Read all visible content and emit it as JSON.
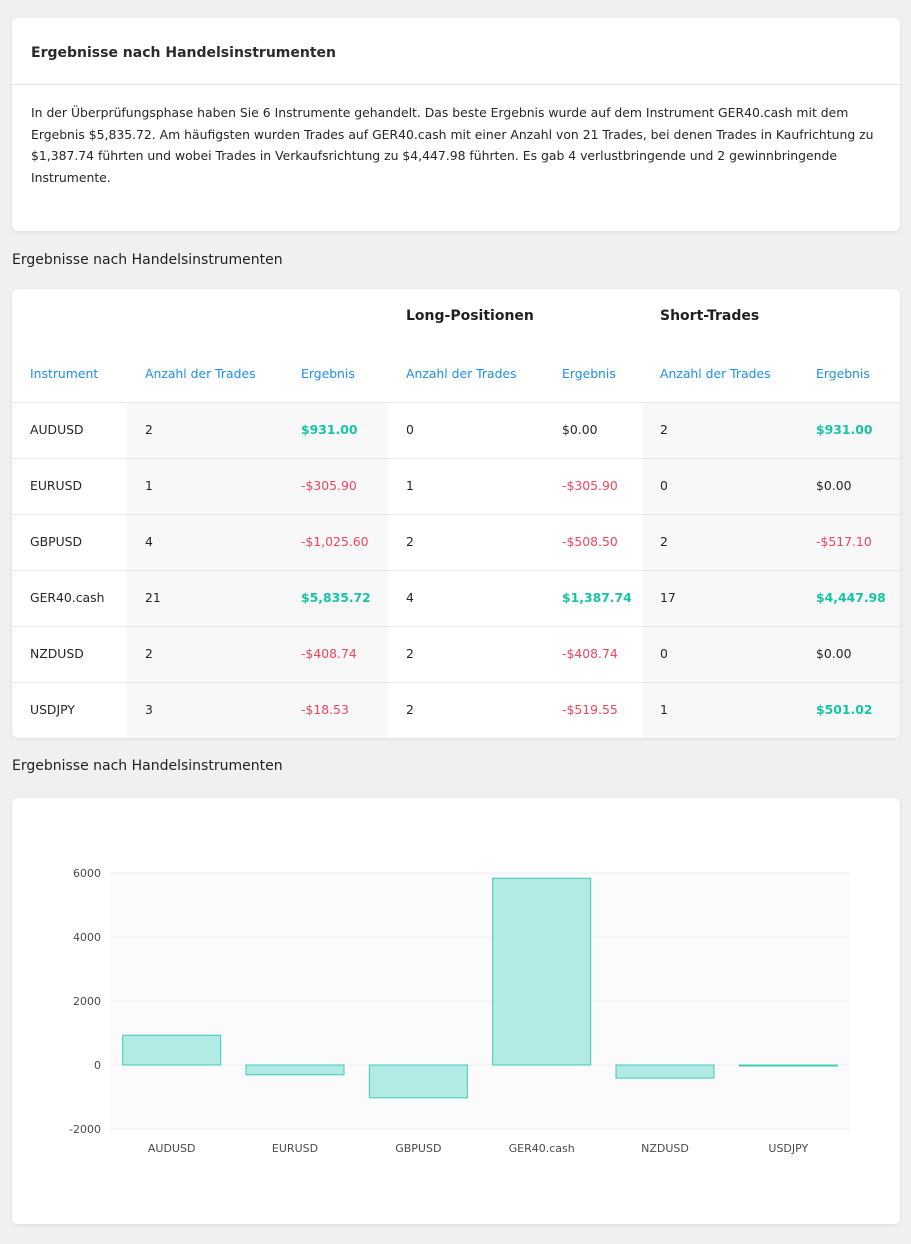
{
  "summary": {
    "title": "Ergebnisse nach Handelsinstrumenten",
    "text": "In der Überprüfungsphase haben Sie 6 Instrumente gehandelt. Das beste Ergebnis wurde auf dem Instrument GER40.cash mit dem Ergebnis $5,835.72. Am häufigsten wurden Trades auf GER40.cash mit einer Anzahl von 21 Trades, bei denen Trades in Kaufrichtung zu $1,387.74 führten und wobei Trades in Verkaufsrichtung zu $4,447.98 führten. Es gab 4 verlustbringende und 2 gewinnbringende Instrumente."
  },
  "table_section_title": "Ergebnisse nach Handelsinstrumenten",
  "table": {
    "group_long": "Long-Positionen",
    "group_short": "Short-Trades",
    "columns": [
      "Instrument",
      "Anzahl der Trades",
      "Ergebnis",
      "Anzahl der Trades",
      "Ergebnis",
      "Anzahl der Trades",
      "Ergebnis"
    ],
    "rows": [
      [
        "AUDUSD",
        "2",
        "$931.00",
        "0",
        "$0.00",
        "2",
        "$931.00"
      ],
      [
        "EURUSD",
        "1",
        "-$305.90",
        "1",
        "-$305.90",
        "0",
        "$0.00"
      ],
      [
        "GBPUSD",
        "4",
        "-$1,025.60",
        "2",
        "-$508.50",
        "2",
        "-$517.10"
      ],
      [
        "GER40.cash",
        "21",
        "$5,835.72",
        "4",
        "$1,387.74",
        "17",
        "$4,447.98"
      ],
      [
        "NZDUSD",
        "2",
        "-$408.74",
        "2",
        "-$408.74",
        "0",
        "$0.00"
      ],
      [
        "USDJPY",
        "3",
        "-$18.53",
        "2",
        "-$519.55",
        "1",
        "$501.02"
      ]
    ]
  },
  "chart_section_title": "Ergebnisse nach Handelsinstrumenten",
  "chart_data": {
    "type": "bar",
    "categories": [
      "AUDUSD",
      "EURUSD",
      "GBPUSD",
      "GER40.cash",
      "NZDUSD",
      "USDJPY"
    ],
    "values": [
      931.0,
      -305.9,
      -1025.6,
      5835.72,
      -408.74,
      -18.53
    ],
    "ylim": [
      -2000,
      6000
    ],
    "yticks": [
      6000,
      4000,
      2000,
      0,
      -2000
    ],
    "grid": true,
    "bar_fill": "#b1ebe4",
    "bar_stroke": "#3ccbb8"
  },
  "colors": {
    "positive": "#17c3a5",
    "negative": "#f0445f",
    "header_blue": "#1e8fe6"
  }
}
